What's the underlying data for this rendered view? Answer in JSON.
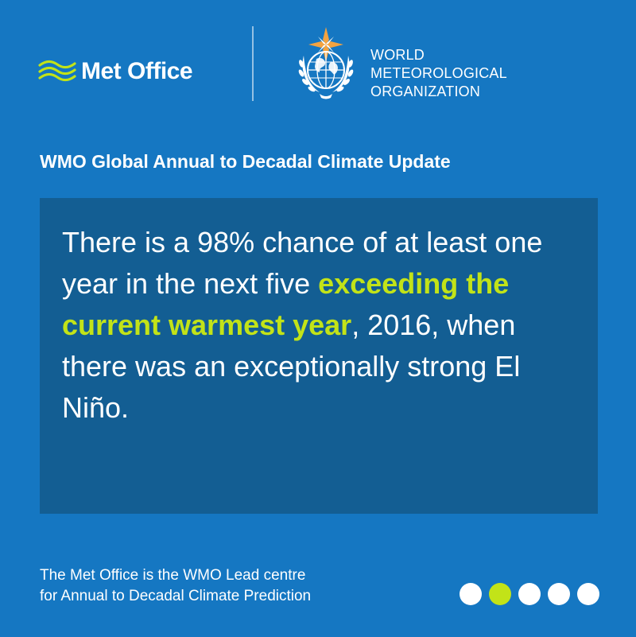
{
  "header": {
    "metoffice_logo_text": "Met Office",
    "wmo_name_lines": [
      "WORLD",
      "METEOROLOGICAL",
      "ORGANIZATION"
    ]
  },
  "title": "WMO Global Annual to Decadal Climate Update",
  "message": {
    "part1": "There is a 98% chance of at least one year in the next five ",
    "highlight": "exceeding the current warmest year",
    "part2": ", 2016, when there was an exceptionally strong El Niño."
  },
  "footer": {
    "note_lines": [
      "The Met Office is the WMO Lead centre",
      "for Annual to Decadal Climate Prediction"
    ]
  },
  "pager": {
    "total": 5,
    "active_index": 1
  },
  "colors": {
    "background": "#1577c2",
    "panel": "#135e93",
    "accent": "#c2e318",
    "text": "#ffffff"
  }
}
